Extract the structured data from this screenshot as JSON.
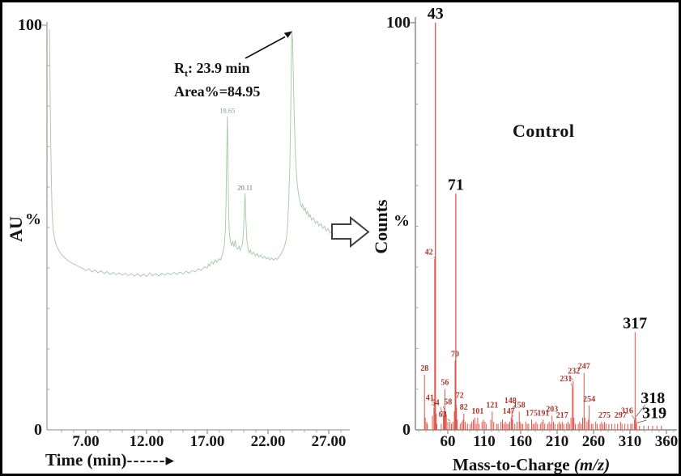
{
  "figure": {
    "background": "#ffffff",
    "border_color": "#000000"
  },
  "chart_data": [
    {
      "type": "line",
      "panel": "left-chromatogram",
      "xlabel": "Time (min)",
      "xlabel_arrow": "------▸",
      "ylabel": "AU",
      "ylabel_unit": "%",
      "xlim": [
        3.8,
        28.6
      ],
      "ylim": [
        0,
        100
      ],
      "grid": false,
      "line_color": "#a2c9a2",
      "axis_color": "#a0a0a0",
      "x_major_ticks": [
        {
          "v": 7,
          "label": "7.00"
        },
        {
          "v": 12,
          "label": "12.00"
        },
        {
          "v": 17,
          "label": "17.00"
        },
        {
          "v": 22,
          "label": "22.00"
        },
        {
          "v": 27,
          "label": "27.00"
        }
      ],
      "x_minor_step": 1,
      "y_ticks": [
        {
          "v": 0,
          "label": "0"
        },
        {
          "v": 100,
          "label": "100"
        }
      ],
      "y_minor_step": 10,
      "annotation": {
        "r": "R",
        "sub": "t",
        "line1_rest": ": 23.9 min",
        "line2": "Area%=84.95"
      },
      "annotation_points_to_min": 23.9,
      "peak_labels": [
        {
          "x": 18.65,
          "y": 77.5,
          "label": "18.65",
          "color": "#7fa185"
        },
        {
          "x": 20.11,
          "y": 58.5,
          "label": "20.11",
          "color": "#6d6d6d"
        }
      ],
      "trace": [
        [
          4.0,
          99
        ],
        [
          4.03,
          92
        ],
        [
          4.06,
          83
        ],
        [
          4.1,
          73
        ],
        [
          4.15,
          63
        ],
        [
          4.22,
          54
        ],
        [
          4.3,
          49.5
        ],
        [
          4.45,
          46.8
        ],
        [
          4.6,
          45.4
        ],
        [
          4.8,
          44.2
        ],
        [
          5.0,
          43.3
        ],
        [
          5.3,
          42.4
        ],
        [
          5.6,
          41.7
        ],
        [
          5.9,
          41.1
        ],
        [
          6.2,
          40.7
        ],
        [
          6.5,
          40.2
        ],
        [
          6.75,
          39.9
        ],
        [
          7.0,
          39.3
        ],
        [
          7.25,
          39.8
        ],
        [
          7.5,
          39.0
        ],
        [
          7.75,
          39.5
        ],
        [
          8.0,
          38.8
        ],
        [
          8.25,
          39.3
        ],
        [
          8.5,
          38.6
        ],
        [
          8.75,
          39.1
        ],
        [
          9.0,
          38.4
        ],
        [
          9.25,
          38.9
        ],
        [
          9.5,
          38.3
        ],
        [
          9.75,
          38.8
        ],
        [
          10.0,
          38.2
        ],
        [
          10.25,
          38.7
        ],
        [
          10.5,
          38.1
        ],
        [
          10.75,
          38.6
        ],
        [
          11.0,
          38.0
        ],
        [
          11.25,
          38.6
        ],
        [
          11.5,
          37.9
        ],
        [
          11.75,
          38.5
        ],
        [
          12.0,
          37.9
        ],
        [
          12.25,
          38.8
        ],
        [
          12.5,
          38.1
        ],
        [
          12.75,
          38.6
        ],
        [
          13.0,
          38.0
        ],
        [
          13.25,
          38.7
        ],
        [
          13.5,
          38.2
        ],
        [
          13.75,
          38.8
        ],
        [
          14.0,
          38.3
        ],
        [
          14.25,
          38.9
        ],
        [
          14.5,
          38.4
        ],
        [
          14.75,
          39.0
        ],
        [
          15.0,
          38.5
        ],
        [
          15.25,
          39.2
        ],
        [
          15.5,
          38.7
        ],
        [
          15.75,
          39.4
        ],
        [
          16.0,
          39.0
        ],
        [
          16.25,
          39.8
        ],
        [
          16.5,
          39.4
        ],
        [
          16.75,
          40.3
        ],
        [
          17.0,
          40.0
        ],
        [
          17.1,
          41.0
        ],
        [
          17.2,
          40.5
        ],
        [
          17.35,
          41.6
        ],
        [
          17.5,
          41.0
        ],
        [
          17.65,
          42.0
        ],
        [
          17.8,
          41.4
        ],
        [
          17.95,
          42.3
        ],
        [
          18.1,
          42.0
        ],
        [
          18.25,
          43.5
        ],
        [
          18.4,
          45.5
        ],
        [
          18.5,
          50.0
        ],
        [
          18.55,
          58.0
        ],
        [
          18.6,
          68.0
        ],
        [
          18.65,
          77.5
        ],
        [
          18.7,
          66.0
        ],
        [
          18.75,
          55.0
        ],
        [
          18.8,
          49.5
        ],
        [
          18.9,
          46.5
        ],
        [
          19.0,
          45.5
        ],
        [
          19.1,
          46.5
        ],
        [
          19.2,
          45.2
        ],
        [
          19.3,
          46.8
        ],
        [
          19.4,
          45.0
        ],
        [
          19.5,
          44.6
        ],
        [
          19.6,
          45.4
        ],
        [
          19.7,
          44.4
        ],
        [
          19.8,
          45.2
        ],
        [
          19.9,
          46.0
        ],
        [
          20.0,
          50.0
        ],
        [
          20.05,
          55.0
        ],
        [
          20.11,
          58.5
        ],
        [
          20.18,
          52.0
        ],
        [
          20.25,
          47.0
        ],
        [
          20.35,
          44.8
        ],
        [
          20.45,
          43.8
        ],
        [
          20.55,
          44.4
        ],
        [
          20.65,
          43.4
        ],
        [
          20.8,
          43.9
        ],
        [
          20.95,
          43.0
        ],
        [
          21.1,
          43.5
        ],
        [
          21.25,
          42.7
        ],
        [
          21.4,
          43.2
        ],
        [
          21.55,
          42.4
        ],
        [
          21.7,
          42.9
        ],
        [
          21.85,
          42.2
        ],
        [
          22.0,
          42.6
        ],
        [
          22.15,
          42.0
        ],
        [
          22.3,
          42.5
        ],
        [
          22.45,
          41.9
        ],
        [
          22.6,
          42.4
        ],
        [
          22.75,
          42.1
        ],
        [
          22.9,
          42.8
        ],
        [
          23.05,
          43.3
        ],
        [
          23.2,
          44.2
        ],
        [
          23.35,
          45.3
        ],
        [
          23.5,
          47.0
        ],
        [
          23.6,
          50.0
        ],
        [
          23.7,
          56.0
        ],
        [
          23.8,
          66.0
        ],
        [
          23.87,
          80.0
        ],
        [
          23.93,
          92.0
        ],
        [
          23.97,
          98.5
        ],
        [
          24.02,
          96.0
        ],
        [
          24.08,
          88.0
        ],
        [
          24.15,
          78.0
        ],
        [
          24.25,
          68.0
        ],
        [
          24.35,
          62.5
        ],
        [
          24.45,
          59.5
        ],
        [
          24.55,
          57.5
        ],
        [
          24.65,
          56.3
        ],
        [
          24.75,
          55.0
        ],
        [
          24.85,
          55.8
        ],
        [
          24.95,
          54.2
        ],
        [
          25.05,
          54.8
        ],
        [
          25.15,
          53.4
        ],
        [
          25.25,
          54.0
        ],
        [
          25.35,
          52.6
        ],
        [
          25.45,
          53.2
        ],
        [
          25.6,
          51.8
        ],
        [
          25.75,
          52.4
        ],
        [
          25.9,
          51.0
        ],
        [
          26.05,
          51.6
        ],
        [
          26.2,
          50.4
        ],
        [
          26.35,
          50.9
        ],
        [
          26.5,
          49.8
        ],
        [
          26.65,
          50.3
        ],
        [
          26.8,
          49.2
        ],
        [
          26.95,
          49.7
        ],
        [
          27.1,
          48.6
        ],
        [
          27.25,
          49.0
        ],
        [
          27.35,
          48.3
        ]
      ]
    },
    {
      "type": "bar",
      "subtype": "mass-spectrum-sticks",
      "panel": "right-mass-spectrum",
      "title_annotation": "Control",
      "xlabel": "Mass-to-Charge ",
      "xlabel_italic": "(m/z)",
      "ylabel": "Counts",
      "ylabel_unit": "%",
      "xlim": [
        16,
        374
      ],
      "ylim": [
        0,
        100
      ],
      "grid": false,
      "stick_color": "#e2544a",
      "axis_color": "#787878",
      "label_color_small": "#a8362b",
      "label_color_big": "#0d0d0d",
      "x_major_ticks": [
        {
          "v": 60,
          "label": "60"
        },
        {
          "v": 110,
          "label": "110"
        },
        {
          "v": 160,
          "label": "160"
        },
        {
          "v": 210,
          "label": "210"
        },
        {
          "v": 260,
          "label": "260"
        },
        {
          "v": 310,
          "label": "310"
        },
        {
          "v": 360,
          "label": "360"
        }
      ],
      "x_minor_step": 10,
      "y_ticks": [
        {
          "v": 0,
          "label": "0"
        },
        {
          "v": 100,
          "label": "100"
        }
      ],
      "y_minor_step": 10,
      "peaks": [
        {
          "mz": 28,
          "i": 13.5,
          "label": "28",
          "style": "small"
        },
        [
          29,
          3
        ],
        [
          31,
          2
        ],
        [
          32,
          1.5
        ],
        [
          39,
          3.5
        ],
        {
          "mz": 41,
          "i": 5.5,
          "label": "41",
          "style": "small",
          "dx": -5,
          "dy": -4
        },
        {
          "mz": 42,
          "i": 42,
          "label": "42",
          "style": "small",
          "dx": -7,
          "dy": 0
        },
        {
          "mz": 43,
          "i": 100,
          "label": "43",
          "style": "big"
        },
        [
          44,
          4
        ],
        [
          45,
          1.5
        ],
        [
          51,
          1.5
        ],
        {
          "mz": 54,
          "i": 3.5,
          "label": "54",
          "style": "small",
          "dx": -10,
          "dy": -8
        },
        [
          55,
          4.5
        ],
        {
          "mz": 56,
          "i": 10,
          "label": "56",
          "style": "small"
        },
        [
          57,
          3.5
        ],
        {
          "mz": 58,
          "i": 3.5,
          "label": "58",
          "style": "small",
          "dx": 2,
          "dy": -9
        },
        [
          60,
          2
        ],
        {
          "mz": 63,
          "i": 2,
          "label": "63",
          "style": "small",
          "dx": -9,
          "dy": -1
        },
        [
          65,
          1.5
        ],
        [
          67,
          2
        ],
        [
          69,
          4.5
        ],
        {
          "mz": 70,
          "i": 17,
          "label": "70",
          "style": "small"
        },
        {
          "mz": 71,
          "i": 58,
          "label": "71",
          "style": "big"
        },
        {
          "mz": 72,
          "i": 5.5,
          "label": "72",
          "style": "small",
          "dx": 4,
          "dy": -7
        },
        [
          73,
          2.5
        ],
        [
          77,
          1.5
        ],
        [
          79,
          2
        ],
        [
          81,
          2.5
        ],
        {
          "mz": 82,
          "i": 4,
          "label": "82",
          "style": "small"
        },
        [
          84,
          2
        ],
        [
          87,
          1.5
        ],
        [
          91,
          1.5
        ],
        [
          93,
          2
        ],
        [
          95,
          2.5
        ],
        [
          97,
          3
        ],
        [
          99,
          1.5
        ],
        {
          "mz": 101,
          "i": 3,
          "label": "101",
          "style": "small"
        },
        [
          103,
          1.5
        ],
        [
          107,
          2
        ],
        [
          109,
          2.5
        ],
        [
          111,
          2
        ],
        [
          113,
          1.5
        ],
        [
          119,
          2.5
        ],
        {
          "mz": 121,
          "i": 4.5,
          "label": "121",
          "style": "small"
        },
        [
          123,
          2
        ],
        [
          127,
          1.5
        ],
        [
          129,
          1.5
        ],
        [
          133,
          2
        ],
        [
          135,
          2.5
        ],
        [
          137,
          1.5
        ],
        [
          139,
          2
        ],
        [
          141,
          1.5
        ],
        [
          143,
          1.5
        ],
        [
          145,
          2
        ],
        {
          "mz": 147,
          "i": 3,
          "label": "147",
          "style": "small",
          "dx": -3,
          "dy": 0
        },
        {
          "mz": 148,
          "i": 5,
          "label": "148",
          "style": "small",
          "dx": -2,
          "dy": -3
        },
        [
          149,
          2.5
        ],
        [
          152,
          1.5
        ],
        [
          155,
          2
        ],
        {
          "mz": 158,
          "i": 4.5,
          "label": "158",
          "style": "small"
        },
        [
          159,
          2
        ],
        [
          161,
          1.5
        ],
        [
          163,
          1.5
        ],
        [
          167,
          2
        ],
        [
          169,
          1.5
        ],
        [
          171,
          1.5
        ],
        {
          "mz": 175,
          "i": 2.5,
          "label": "175",
          "style": "small"
        },
        [
          177,
          1.5
        ],
        [
          179,
          1.5
        ],
        [
          181,
          2
        ],
        [
          183,
          1.5
        ],
        [
          187,
          1.5
        ],
        [
          189,
          2
        ],
        {
          "mz": 191,
          "i": 2.5,
          "label": "191",
          "style": "small"
        },
        [
          193,
          1.5
        ],
        [
          197,
          1.5
        ],
        [
          199,
          2
        ],
        [
          201,
          1.5
        ],
        {
          "mz": 203,
          "i": 3.5,
          "label": "203",
          "style": "small"
        },
        [
          205,
          2
        ],
        [
          207,
          1.5
        ],
        [
          211,
          1.5
        ],
        [
          213,
          2
        ],
        [
          215,
          1.5
        ],
        {
          "mz": 217,
          "i": 2,
          "label": "217",
          "style": "small"
        },
        [
          219,
          1.5
        ],
        [
          223,
          1.5
        ],
        [
          225,
          2
        ],
        [
          227,
          1.5
        ],
        [
          229,
          3
        ],
        {
          "mz": 231,
          "i": 10.5,
          "label": "231",
          "style": "small",
          "dx": -8,
          "dy": -2
        },
        {
          "mz": 232,
          "i": 12,
          "label": "232",
          "style": "small",
          "dx": 1,
          "dy": -4
        },
        [
          233,
          3
        ],
        [
          235,
          1.5
        ],
        [
          239,
          1.5
        ],
        [
          241,
          2
        ],
        [
          243,
          1.5
        ],
        [
          245,
          3
        ],
        {
          "mz": 247,
          "i": 14,
          "label": "247",
          "style": "small"
        },
        [
          248,
          3
        ],
        [
          251,
          2
        ],
        [
          253,
          2.5
        ],
        {
          "mz": 254,
          "i": 6,
          "label": "254",
          "style": "small"
        },
        [
          257,
          1.5
        ],
        [
          259,
          1.5
        ],
        [
          263,
          2
        ],
        [
          265,
          1.5
        ],
        [
          269,
          1.5
        ],
        [
          271,
          2
        ],
        [
          273,
          1.5
        ],
        {
          "mz": 275,
          "i": 2,
          "label": "275",
          "style": "small"
        },
        [
          277,
          1.5
        ],
        [
          281,
          1.5
        ],
        [
          285,
          1.5
        ],
        [
          289,
          1.5
        ],
        [
          293,
          1.5
        ],
        {
          "mz": 297,
          "i": 2,
          "label": "297",
          "style": "small"
        },
        [
          299,
          1.5
        ],
        [
          303,
          1.5
        ],
        [
          307,
          1.5
        ],
        [
          311,
          1.5
        ],
        [
          313,
          1.5
        ],
        {
          "mz": 316,
          "i": 2.5,
          "label": "316",
          "style": "small",
          "dx": -9,
          "dy": -3
        },
        {
          "mz": 317,
          "i": 24,
          "label": "317",
          "style": "big"
        },
        {
          "mz": 318,
          "i": 3,
          "label": "318",
          "style": "big",
          "dx": 21,
          "dy": -13
        },
        {
          "mz": 319,
          "i": 1.5,
          "label": "319",
          "style": "big",
          "dx": 22,
          "dy": -2
        },
        [
          323,
          1
        ],
        [
          329,
          1
        ],
        [
          335,
          1
        ],
        [
          341,
          1
        ],
        [
          347,
          1
        ],
        [
          353,
          1
        ]
      ]
    }
  ]
}
